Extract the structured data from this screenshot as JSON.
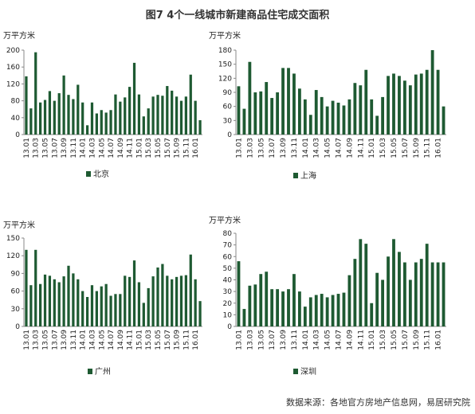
{
  "figure_title": "图7  4个一线城市新建商品住宅成交面积",
  "source": "数据来源：各地官方房地产信息网，易居研究院",
  "colors": {
    "bar": "#1e5a32",
    "axis": "#888888"
  },
  "chart_data": [
    {
      "type": "bar",
      "unit": "万平方米",
      "legend": "北京",
      "legend_position": "bottom-left",
      "ylim": [
        0,
        200
      ],
      "yticks": [
        0,
        40,
        80,
        120,
        160,
        200
      ],
      "categories": [
        "13.01",
        "13.02",
        "13.03",
        "13.04",
        "13.05",
        "13.06",
        "13.07",
        "13.08",
        "13.09",
        "13.10",
        "13.11",
        "13.12",
        "14.01",
        "14.02",
        "14.03",
        "14.04",
        "14.05",
        "14.06",
        "14.07",
        "14.08",
        "14.09",
        "14.10",
        "14.11",
        "14.12",
        "15.01",
        "15.02",
        "15.03",
        "15.04",
        "15.05",
        "15.06",
        "15.07",
        "15.08",
        "15.09",
        "15.10",
        "15.11",
        "15.12",
        "16.01",
        "16.02"
      ],
      "xtick_labels": [
        "13.01",
        "13.03",
        "13.05",
        "13.07",
        "13.09",
        "13.11",
        "14.01",
        "14.03",
        "14.05",
        "14.07",
        "14.09",
        "14.11",
        "15.01",
        "15.03",
        "15.05",
        "15.07",
        "15.09",
        "15.11",
        "16.01"
      ],
      "values": [
        138,
        62,
        195,
        76,
        82,
        103,
        80,
        98,
        140,
        94,
        84,
        118,
        76,
        22,
        76,
        50,
        58,
        52,
        58,
        95,
        78,
        88,
        113,
        170,
        95,
        43,
        62,
        90,
        94,
        92,
        115,
        104,
        90,
        80,
        90,
        142,
        80,
        34
      ]
    },
    {
      "type": "bar",
      "unit": "万平方米",
      "legend": "上海",
      "legend_position": "bottom-left",
      "ylim": [
        0,
        180
      ],
      "yticks": [
        0,
        30,
        60,
        90,
        120,
        150,
        180
      ],
      "categories": [
        "13.01",
        "13.02",
        "13.03",
        "13.04",
        "13.05",
        "13.06",
        "13.07",
        "13.08",
        "13.09",
        "13.10",
        "13.11",
        "13.12",
        "14.01",
        "14.02",
        "14.03",
        "14.04",
        "14.05",
        "14.06",
        "14.07",
        "14.08",
        "14.09",
        "14.10",
        "14.11",
        "14.12",
        "15.01",
        "15.02",
        "15.03",
        "15.04",
        "15.05",
        "15.06",
        "15.07",
        "15.08",
        "15.09",
        "15.10",
        "15.11",
        "15.12",
        "16.01",
        "16.02"
      ],
      "xtick_labels": [
        "13.01",
        "13.03",
        "13.05",
        "13.07",
        "13.09",
        "13.11",
        "14.01",
        "14.03",
        "14.05",
        "14.07",
        "14.09",
        "14.11",
        "15.01",
        "15.03",
        "15.05",
        "15.07",
        "15.09",
        "15.11",
        "16.01"
      ],
      "values": [
        103,
        55,
        155,
        90,
        92,
        112,
        78,
        90,
        142,
        142,
        130,
        98,
        75,
        42,
        95,
        80,
        60,
        72,
        68,
        62,
        75,
        110,
        105,
        138,
        75,
        40,
        80,
        125,
        130,
        125,
        115,
        105,
        128,
        130,
        138,
        180,
        138,
        60
      ]
    },
    {
      "type": "bar",
      "unit": "万平方米",
      "legend": "广州",
      "legend_position": "bottom-left",
      "ylim": [
        0,
        150
      ],
      "yticks": [
        0,
        30,
        60,
        90,
        120,
        150
      ],
      "categories": [
        "13.01",
        "13.02",
        "13.03",
        "13.04",
        "13.05",
        "13.06",
        "13.07",
        "13.08",
        "13.09",
        "13.10",
        "13.11",
        "13.12",
        "14.01",
        "14.02",
        "14.03",
        "14.04",
        "14.05",
        "14.06",
        "14.07",
        "14.08",
        "14.09",
        "14.10",
        "14.11",
        "14.12",
        "15.01",
        "15.02",
        "15.03",
        "15.04",
        "15.05",
        "15.06",
        "15.07",
        "15.08",
        "15.09",
        "15.10",
        "15.11",
        "15.12",
        "16.01",
        "16.02"
      ],
      "xtick_labels": [
        "13.01",
        "13.03",
        "13.05",
        "13.07",
        "13.09",
        "13.11",
        "14.01",
        "14.03",
        "14.05",
        "14.07",
        "14.09",
        "14.11",
        "15.01",
        "15.03",
        "15.05",
        "15.07",
        "15.09",
        "15.11",
        "16.01"
      ],
      "values": [
        130,
        70,
        130,
        72,
        88,
        86,
        80,
        75,
        85,
        103,
        90,
        80,
        60,
        50,
        70,
        60,
        68,
        72,
        52,
        55,
        55,
        86,
        84,
        112,
        75,
        40,
        65,
        85,
        100,
        106,
        86,
        80,
        84,
        86,
        87,
        122,
        80,
        43
      ]
    },
    {
      "type": "bar",
      "unit": "万平方米",
      "legend": "深圳",
      "legend_position": "bottom-left",
      "ylim": [
        0,
        80
      ],
      "yticks": [
        0,
        10,
        20,
        30,
        40,
        50,
        60,
        70,
        80
      ],
      "categories": [
        "13.01",
        "13.02",
        "13.03",
        "13.04",
        "13.05",
        "13.06",
        "13.07",
        "13.08",
        "13.09",
        "13.10",
        "13.11",
        "13.12",
        "14.01",
        "14.02",
        "14.03",
        "14.04",
        "14.05",
        "14.06",
        "14.07",
        "14.08",
        "14.09",
        "14.10",
        "14.11",
        "14.12",
        "15.01",
        "15.02",
        "15.03",
        "15.04",
        "15.05",
        "15.06",
        "15.07",
        "15.08",
        "15.09",
        "15.10",
        "15.11",
        "15.12",
        "16.01",
        "16.02"
      ],
      "xtick_labels": [
        "13.01",
        "13.03",
        "13.05",
        "13.07",
        "13.09",
        "13.11",
        "14.01",
        "14.03",
        "14.05",
        "14.07",
        "14.09",
        "14.11",
        "15.01",
        "15.03",
        "15.05",
        "15.07",
        "15.09",
        "15.11",
        "16.01"
      ],
      "values": [
        56,
        15,
        35,
        36,
        45,
        47,
        32,
        32,
        30,
        32,
        45,
        30,
        17,
        25,
        27,
        28,
        25,
        27,
        28,
        29,
        44,
        58,
        75,
        71,
        20,
        46,
        40,
        60,
        75,
        64,
        55,
        40,
        55,
        58,
        71,
        55,
        55,
        55
      ]
    }
  ]
}
